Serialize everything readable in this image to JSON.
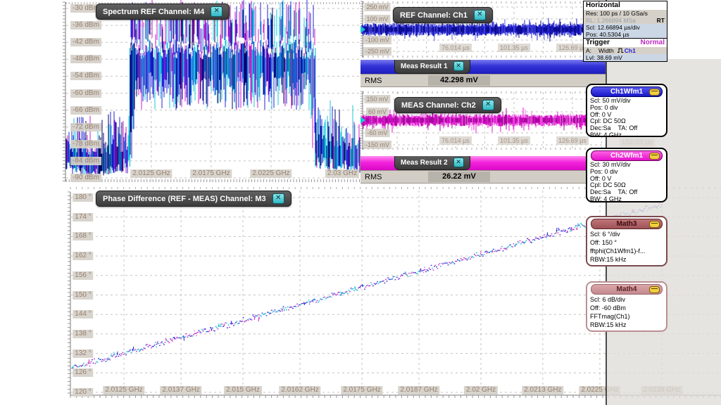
{
  "icons": {
    "close": "✕"
  },
  "colors": {
    "accent_blue": "#2323cc",
    "accent_magenta": "#e41ad6",
    "accent_cyan": "#19c5d4",
    "tab_grey": "#4b4b4b",
    "badge_bg": "#d5d1c9",
    "badge_text": "#97806f",
    "meas1_bar": "#2d2dcc",
    "meas2_bar": "#f316d8",
    "panel_value_row": "#ccd7e6",
    "trigger_normal": "#c02cc0",
    "math_maroon": "#a45357",
    "math_maroon_light": "#cf989b"
  },
  "spectrum_panel": {
    "title": "Spectrum REF Channel: M4",
    "y_tick_labels": [
      "-30 dBm",
      "-36 dBm",
      "-42 dBm",
      "-48 dBm",
      "-54 dBm",
      "-60 dBm",
      "-66 dBm",
      "-72 dBm",
      "-78 dBm",
      "-84 dBm",
      "-90 dBm"
    ],
    "x_tick_labels": [
      "2.0125 GHz",
      "2.0175 GHz",
      "2.0225 GHz",
      "2.03 GHz"
    ]
  },
  "ref_panel": {
    "title": "REF Channel: Ch1",
    "y_tick_labels": [
      "250 mV",
      "100 mV",
      "-100 mV",
      "-250 mV"
    ],
    "x_tick_labels": [
      "76.014 µs",
      "101.35 µs",
      "126.69 µs"
    ]
  },
  "meas1": {
    "title": "Meas Result 1",
    "metric": "RMS",
    "value": "42.298 mV"
  },
  "meas_ch2_panel": {
    "title": "MEAS Channel: Ch2",
    "y_tick_labels": [
      "150 mV",
      "60 mV",
      "-60 mV",
      "-150 mV"
    ],
    "x_tick_labels": [
      "76.014 µs",
      "101.35 µs",
      "126.69 µs"
    ],
    "offscreen_x_label": "152.03 µs"
  },
  "meas2": {
    "title": "Meas Result 2",
    "metric": "RMS",
    "value": "26.22 mV"
  },
  "phase_panel": {
    "title": "Phase Difference (REF - MEAS) Channel: M3",
    "y_tick_labels": [
      "180 °",
      "174 °",
      "168 °",
      "162 °",
      "156 °",
      "150 °",
      "144 °",
      "138 °",
      "132 °",
      "126 °",
      "120 °"
    ],
    "x_tick_labels": [
      "2.0125 GHz",
      "2.0137 GHz",
      "2.015 GHz",
      "2.0162 GHz",
      "2.0175 GHz",
      "2.0187 GHz",
      "2.02 GHz",
      "2.0213 GHz",
      "2.0225 GHz",
      "2.0238 GHz"
    ]
  },
  "horizontal_panel": {
    "title": "Horizontal",
    "res": "Res: 100 ps / 10 GSa/s",
    "rl": "RL:  1.266894 MSa",
    "rt": "RT",
    "scl": "Scl: 12.66894 µs/div",
    "pos": "Pos: 40.5304 µs"
  },
  "trigger_panel": {
    "title": "Trigger",
    "mode": "Normal",
    "a_prefix": "A:",
    "a_type": "Width",
    "source": "Ch1",
    "level": "Lvl:  38.69 mV"
  },
  "ch1wfm1": {
    "title": "Ch1Wfm1",
    "scl": "Scl: 50 mV/div",
    "pos": "Pos: 0 div",
    "off": "Off: 0 V",
    "cpl": "Cpl: DC 50Ω",
    "dec": "Dec:Sa",
    "ta": "TA: Off",
    "bw": "BW: 4 GHz"
  },
  "ch2wfm1": {
    "title": "Ch2Wfm1",
    "scl": "Scl: 30 mV/div",
    "pos": "Pos: 0 div",
    "off": "Off: 0 V",
    "cpl": "Cpl: DC 50Ω",
    "dec": "Dec:Sa",
    "ta": "TA: Off",
    "bw": "BW: 4 GHz"
  },
  "math3": {
    "title": "Math3",
    "scl": "Scl:  6 °/div",
    "off": "Off:  150 °",
    "expr": "fftphi(Ch1Wfm1)-f...",
    "rbw": "RBW:15 kHz"
  },
  "math4": {
    "title": "Math4",
    "scl": "Scl:  6 dB/div",
    "off": "Off:  -60 dBm",
    "expr": "FFTmag(Ch1)",
    "rbw": "RBW:15 kHz"
  },
  "chart_data": [
    {
      "id": "spectrum_m4",
      "type": "area",
      "title": "Spectrum REF Channel: M4",
      "x_unit": "GHz",
      "y_unit": "dBm",
      "x_range": [
        2.0053,
        2.03
      ],
      "y_range": [
        -93,
        -29
      ],
      "x_ticks": [
        2.0125,
        2.0175,
        2.0225,
        2.03
      ],
      "y_ticks": [
        -30,
        -36,
        -42,
        -48,
        -54,
        -60,
        -66,
        -72,
        -78,
        -84,
        -90
      ],
      "signal": {
        "band_start_ghz": 2.0107,
        "band_stop_ghz": 2.0262,
        "band_top_dbm": -43,
        "band_bottom_dbm": -52,
        "noise_floor_dbm": -87,
        "skirt_shoulder_dbm": -78
      },
      "trace_colors": [
        "#18c4da",
        "#2424da",
        "#050568",
        "#c81ec8"
      ]
    },
    {
      "id": "ref_ch1",
      "type": "noise-band",
      "title": "REF Channel: Ch1",
      "x_unit": "µs",
      "y_unit": "mV",
      "x_ticks": [
        76.014,
        101.35,
        126.69
      ],
      "y_ticks": [
        250,
        100,
        -100,
        -250
      ],
      "signal": {
        "center_mv": 0,
        "dense_mv": 60,
        "peak_mv": 115,
        "rms": "42.298 mV"
      },
      "trace_colors": [
        "#2525d2",
        "#0b0b96",
        "#5858e8"
      ]
    },
    {
      "id": "meas_ch2",
      "type": "noise-band",
      "title": "MEAS Channel: Ch2",
      "x_unit": "µs",
      "y_unit": "mV",
      "x_ticks": [
        76.014,
        101.35,
        126.69,
        152.03
      ],
      "y_ticks": [
        150,
        60,
        -60,
        -150
      ],
      "signal": {
        "center_mv": 0,
        "dense_mv": 55,
        "peak_mv": 120,
        "rms": "26.22 mV"
      },
      "trace_colors": [
        "#e41ad6",
        "#ab07a0",
        "#f575e8"
      ]
    },
    {
      "id": "phase_m3",
      "type": "line",
      "title": "Phase Difference (REF - MEAS) Channel: M3",
      "x_unit": "GHz",
      "y_unit": "°",
      "x_ticks": [
        2.0125,
        2.0137,
        2.015,
        2.0162,
        2.0175,
        2.0187,
        2.02,
        2.0213,
        2.0225,
        2.0238
      ],
      "y_ticks": [
        180,
        174,
        168,
        162,
        156,
        150,
        144,
        138,
        132,
        126,
        120
      ],
      "line": {
        "f0": 2.0114,
        "deg0": 127.5,
        "f1": 2.0238,
        "deg1": 178,
        "noise_deg": 0.7
      },
      "trace_colors": [
        "#17b9d6",
        "#2b2bd8",
        "#c52cc5"
      ]
    }
  ]
}
